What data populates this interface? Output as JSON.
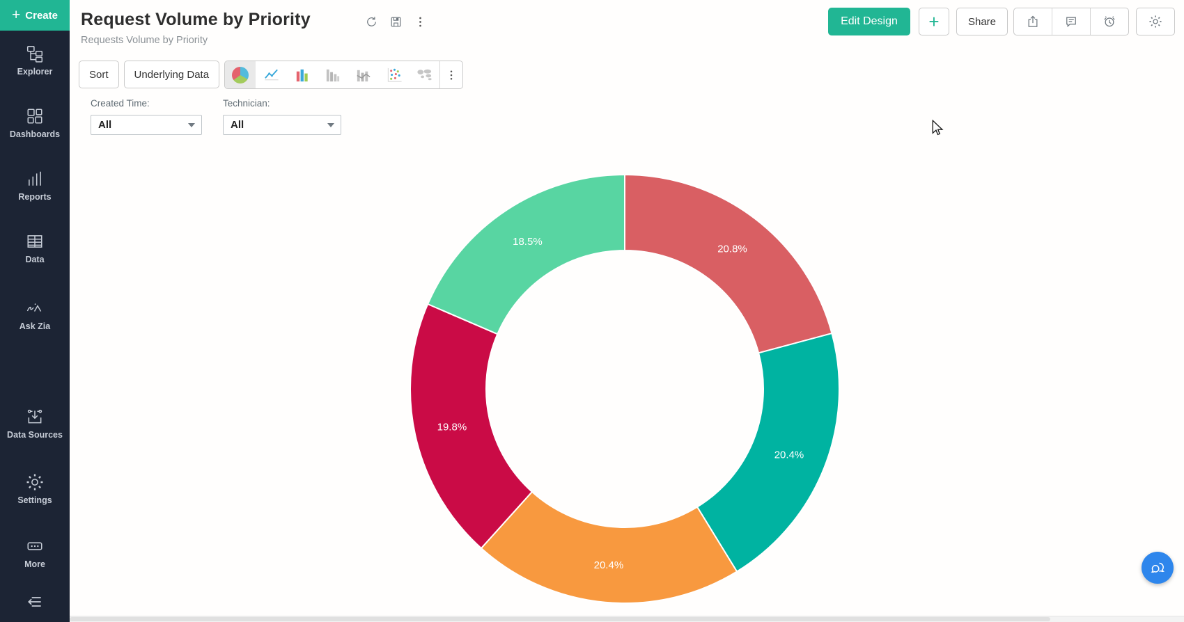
{
  "sidebar": {
    "create_label": "Create",
    "items": [
      {
        "label": "Explorer"
      },
      {
        "label": "Dashboards"
      },
      {
        "label": "Reports"
      },
      {
        "label": "Data"
      },
      {
        "label": "Ask Zia"
      },
      {
        "label": "Data Sources"
      },
      {
        "label": "Settings"
      },
      {
        "label": "More"
      }
    ]
  },
  "header": {
    "title": "Request Volume by Priority",
    "subtitle": "Requests Volume by Priority",
    "edit_design_label": "Edit Design",
    "plus_label": "+",
    "share_label": "Share"
  },
  "toolbar": {
    "sort_label": "Sort",
    "underlying_data_label": "Underlying Data"
  },
  "filters": {
    "created_time": {
      "label": "Created Time:",
      "value": "All"
    },
    "technician": {
      "label": "Technician:",
      "value": "All"
    }
  },
  "chart_data": {
    "type": "pie",
    "subtype": "donut",
    "title": "Request Volume by Priority",
    "legend": "hidden",
    "data_labels": "percentage shown in white inside ring",
    "start": "12-oclock",
    "direction": "clockwise",
    "segments": [
      {
        "label": "20.8%",
        "percent": 20.8,
        "color": "#d95f63"
      },
      {
        "label": "20.4%",
        "percent": 20.4,
        "color": "#00b3a1"
      },
      {
        "label": "20.4%",
        "percent": 20.4,
        "color": "#f8993f"
      },
      {
        "label": "19.8%",
        "percent": 19.8,
        "color": "#ca0b46"
      },
      {
        "label": "18.5%",
        "percent": 18.5,
        "color": "#58d5a2"
      }
    ]
  },
  "colors": {
    "accent_green": "#21b694",
    "sidebar_bg": "#1c2434",
    "sidebar_text": "#c7cdd7",
    "chat_bubble_blue": "#2e86ec",
    "segment_border": "#ffffff"
  }
}
